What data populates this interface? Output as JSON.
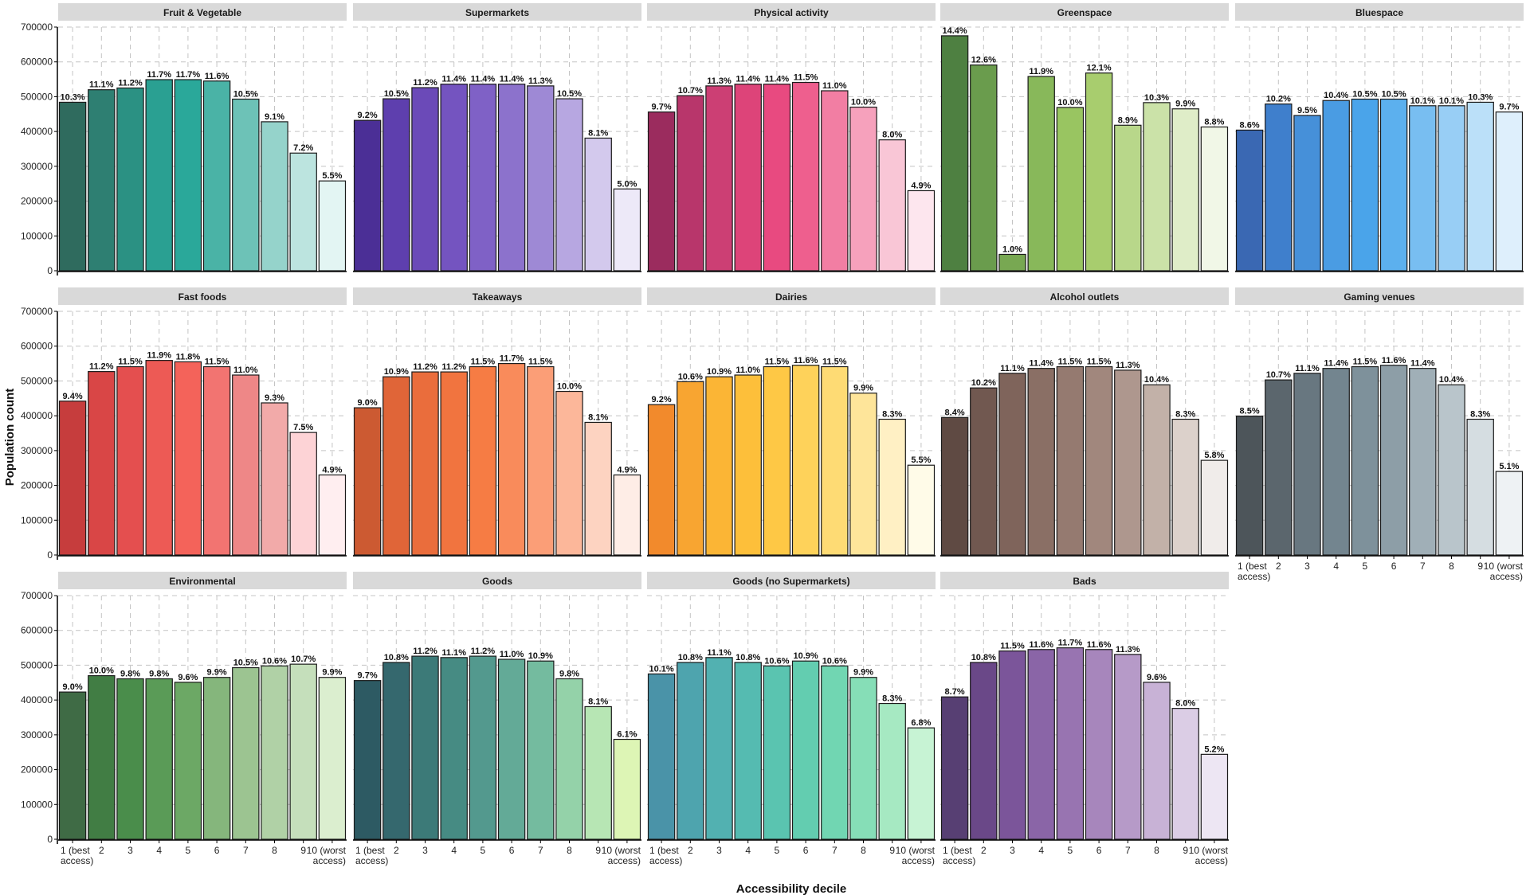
{
  "chart_data": {
    "type": "bar",
    "layout": "facet-grid",
    "xlabel": "Accessibility decile",
    "ylabel": "Population count",
    "ylim": [
      0,
      700000
    ],
    "yticks": [
      0,
      100000,
      200000,
      300000,
      400000,
      500000,
      600000,
      700000
    ],
    "ytick_labels": [
      "0",
      "100000",
      "200000",
      "300000",
      "400000",
      "500000",
      "600000",
      "700000"
    ],
    "categories": [
      "1 (best access)",
      "2",
      "3",
      "4",
      "5",
      "6",
      "7",
      "8",
      "9",
      "10 (worst access)"
    ],
    "category_lines": [
      [
        "1 (best",
        "access)"
      ],
      [
        "2"
      ],
      [
        "3"
      ],
      [
        "4"
      ],
      [
        "5"
      ],
      [
        "6"
      ],
      [
        "7"
      ],
      [
        "8"
      ],
      [
        "9"
      ],
      [
        "10 (worst",
        "access)"
      ]
    ],
    "grid": true,
    "grid_style": "dashed",
    "panels": [
      {
        "title": "Fruit & Vegetable",
        "values": [
          484000,
          520000,
          525000,
          549000,
          549000,
          545000,
          493000,
          428000,
          338000,
          258000
        ],
        "labels": [
          "10.3%",
          "11.1%",
          "11.2%",
          "11.7%",
          "11.7%",
          "11.6%",
          "10.5%",
          "9.1%",
          "7.2%",
          "5.5%"
        ],
        "colors": [
          "#2f6b5e",
          "#2e7f72",
          "#2b9183",
          "#2aa092",
          "#2aa89a",
          "#4ab3a6",
          "#6dc2b7",
          "#95d3cb",
          "#bce4df",
          "#e3f5f3"
        ]
      },
      {
        "title": "Supermarkets",
        "values": [
          432000,
          494000,
          526000,
          536000,
          536000,
          536000,
          531000,
          494000,
          381000,
          235000
        ],
        "labels": [
          "9.2%",
          "10.5%",
          "11.2%",
          "11.4%",
          "11.4%",
          "11.4%",
          "11.3%",
          "10.5%",
          "8.1%",
          "5.0%"
        ],
        "colors": [
          "#4b2f96",
          "#5e3fae",
          "#6b4ab8",
          "#7454c0",
          "#7f61c6",
          "#8c72cc",
          "#9e89d5",
          "#b7a7e1",
          "#d3c9ed",
          "#ede9f8"
        ]
      },
      {
        "title": "Physical activity",
        "values": [
          456000,
          503000,
          531000,
          536000,
          536000,
          541000,
          517000,
          470000,
          376000,
          230000
        ],
        "labels": [
          "9.7%",
          "10.7%",
          "11.3%",
          "11.4%",
          "11.4%",
          "11.5%",
          "11.0%",
          "10.0%",
          "8.0%",
          "4.9%"
        ],
        "colors": [
          "#9b2c5e",
          "#b8366b",
          "#cc3f74",
          "#dd4479",
          "#e84a80",
          "#ee5f8e",
          "#f27ea3",
          "#f6a1bc",
          "#f9c6d6",
          "#fde6ee"
        ]
      },
      {
        "title": "Greenspace",
        "values": [
          675000,
          591000,
          47000,
          558000,
          469000,
          568000,
          418000,
          483000,
          465000,
          413000
        ],
        "labels": [
          "14.4%",
          "12.6%",
          "1.0%",
          "11.9%",
          "10.0%",
          "12.1%",
          "8.9%",
          "10.3%",
          "9.9%",
          "8.8%"
        ],
        "colors": [
          "#4e8041",
          "#6a9c4d",
          "#78a852",
          "#88b85a",
          "#99c561",
          "#a8cd6e",
          "#b8d78a",
          "#cbe2a8",
          "#dfedc8",
          "#f1f7e7"
        ]
      },
      {
        "title": "Bluespace",
        "values": [
          404000,
          479000,
          446000,
          489000,
          493000,
          493000,
          474000,
          474000,
          484000,
          456000
        ],
        "labels": [
          "8.6%",
          "10.2%",
          "9.5%",
          "10.4%",
          "10.5%",
          "10.5%",
          "10.1%",
          "10.1%",
          "10.3%",
          "9.7%"
        ],
        "colors": [
          "#3a68b3",
          "#3f7fcc",
          "#4690d9",
          "#4a9ce3",
          "#4aa4ea",
          "#5cb0ee",
          "#78bef1",
          "#98cef5",
          "#bbe0f9",
          "#deeffc"
        ]
      },
      {
        "title": "Fast foods",
        "values": [
          442000,
          527000,
          541000,
          559000,
          555000,
          541000,
          517000,
          437000,
          352000,
          230000
        ],
        "labels": [
          "9.4%",
          "11.2%",
          "11.5%",
          "11.9%",
          "11.8%",
          "11.5%",
          "11.0%",
          "9.3%",
          "7.5%",
          "4.9%"
        ],
        "colors": [
          "#c63d3d",
          "#d94646",
          "#e44f4f",
          "#ed5a55",
          "#f4635a",
          "#f27471",
          "#ee8787",
          "#f2aaa9",
          "#fdd3d6",
          "#ffeef0"
        ]
      },
      {
        "title": "Takeaways",
        "values": [
          423000,
          512000,
          526000,
          526000,
          541000,
          550000,
          541000,
          470000,
          381000,
          230000
        ],
        "labels": [
          "9.0%",
          "10.9%",
          "11.2%",
          "11.2%",
          "11.5%",
          "11.7%",
          "11.5%",
          "10.0%",
          "8.1%",
          "4.9%"
        ],
        "colors": [
          "#cc5a32",
          "#e06538",
          "#ea6d3c",
          "#f1743f",
          "#f67c44",
          "#f98b5b",
          "#fb9e77",
          "#fcb79a",
          "#fdd3c1",
          "#feede6"
        ]
      },
      {
        "title": "Dairies",
        "values": [
          432000,
          498000,
          512000,
          517000,
          541000,
          545000,
          541000,
          465000,
          390000,
          258000
        ],
        "labels": [
          "9.2%",
          "10.6%",
          "10.9%",
          "11.0%",
          "11.5%",
          "11.6%",
          "11.5%",
          "9.9%",
          "8.3%",
          "5.5%"
        ],
        "colors": [
          "#f28a2c",
          "#f8a531",
          "#fbb535",
          "#fdbf3a",
          "#fec845",
          "#fed25a",
          "#fedb74",
          "#fee59a",
          "#fff0c4",
          "#fffbe8"
        ]
      },
      {
        "title": "Alcohol outlets",
        "values": [
          395000,
          480000,
          522000,
          536000,
          541000,
          541000,
          531000,
          489000,
          390000,
          272000
        ],
        "labels": [
          "8.4%",
          "10.2%",
          "11.1%",
          "11.4%",
          "11.5%",
          "11.5%",
          "11.3%",
          "10.4%",
          "8.3%",
          "5.8%"
        ],
        "colors": [
          "#5f4a43",
          "#715850",
          "#7f645b",
          "#8a6f65",
          "#957a70",
          "#a1877d",
          "#ae978e",
          "#c2b1a8",
          "#dcd1cb",
          "#f0ecea"
        ]
      },
      {
        "title": "Gaming venues",
        "values": [
          399000,
          503000,
          522000,
          536000,
          541000,
          545000,
          536000,
          489000,
          390000,
          240000
        ],
        "labels": [
          "8.5%",
          "10.7%",
          "11.1%",
          "11.4%",
          "11.5%",
          "11.6%",
          "11.4%",
          "10.4%",
          "8.3%",
          "5.1%"
        ],
        "colors": [
          "#4d555a",
          "#5b666d",
          "#687780",
          "#73858f",
          "#7e919b",
          "#8d9ea7",
          "#a0afb7",
          "#b9c5cb",
          "#d5dde1",
          "#eef2f4"
        ]
      },
      {
        "title": "Environmental",
        "values": [
          423000,
          470000,
          461000,
          461000,
          451000,
          465000,
          493000,
          498000,
          503000,
          465000
        ],
        "labels": [
          "9.0%",
          "10.0%",
          "9.8%",
          "9.8%",
          "9.6%",
          "9.9%",
          "10.5%",
          "10.6%",
          "10.7%",
          "9.9%"
        ],
        "colors": [
          "#3f6b45",
          "#417d44",
          "#4a8d4b",
          "#5a9b57",
          "#6ca865",
          "#85b67c",
          "#9cc491",
          "#b0d1a6",
          "#c5dfbb",
          "#dbeecf"
        ]
      },
      {
        "title": "Goods",
        "values": [
          456000,
          508000,
          526000,
          522000,
          526000,
          517000,
          512000,
          461000,
          381000,
          287000
        ],
        "labels": [
          "9.7%",
          "10.8%",
          "11.2%",
          "11.1%",
          "11.2%",
          "11.0%",
          "10.9%",
          "9.8%",
          "8.1%",
          "6.1%"
        ],
        "colors": [
          "#2d5a63",
          "#35686e",
          "#3c7a78",
          "#468b83",
          "#53998e",
          "#63aa97",
          "#74bb9f",
          "#94d2a9",
          "#b7e6b4",
          "#ddf5b5"
        ]
      },
      {
        "title": "Goods (no Supermarkets)",
        "values": [
          475000,
          508000,
          522000,
          508000,
          498000,
          512000,
          498000,
          465000,
          390000,
          320000
        ],
        "labels": [
          "10.1%",
          "10.8%",
          "11.1%",
          "10.8%",
          "10.6%",
          "10.9%",
          "10.6%",
          "9.9%",
          "8.3%",
          "6.8%"
        ],
        "colors": [
          "#4a93a8",
          "#4ea4ae",
          "#52b1b1",
          "#55bbb1",
          "#5ac4b0",
          "#63cdb0",
          "#71d6b2",
          "#86deb7",
          "#a6e9c2",
          "#c7f3d4"
        ]
      },
      {
        "title": "Bads",
        "values": [
          409000,
          508000,
          541000,
          545000,
          550000,
          545000,
          531000,
          451000,
          376000,
          244000
        ],
        "labels": [
          "8.7%",
          "10.8%",
          "11.5%",
          "11.6%",
          "11.7%",
          "11.6%",
          "11.3%",
          "9.6%",
          "8.0%",
          "5.2%"
        ],
        "colors": [
          "#573f73",
          "#6a4888",
          "#7b559a",
          "#8a65a7",
          "#9874b1",
          "#a786bc",
          "#b69ac8",
          "#c8b2d6",
          "#dbcde5",
          "#ede6f3"
        ]
      }
    ]
  }
}
